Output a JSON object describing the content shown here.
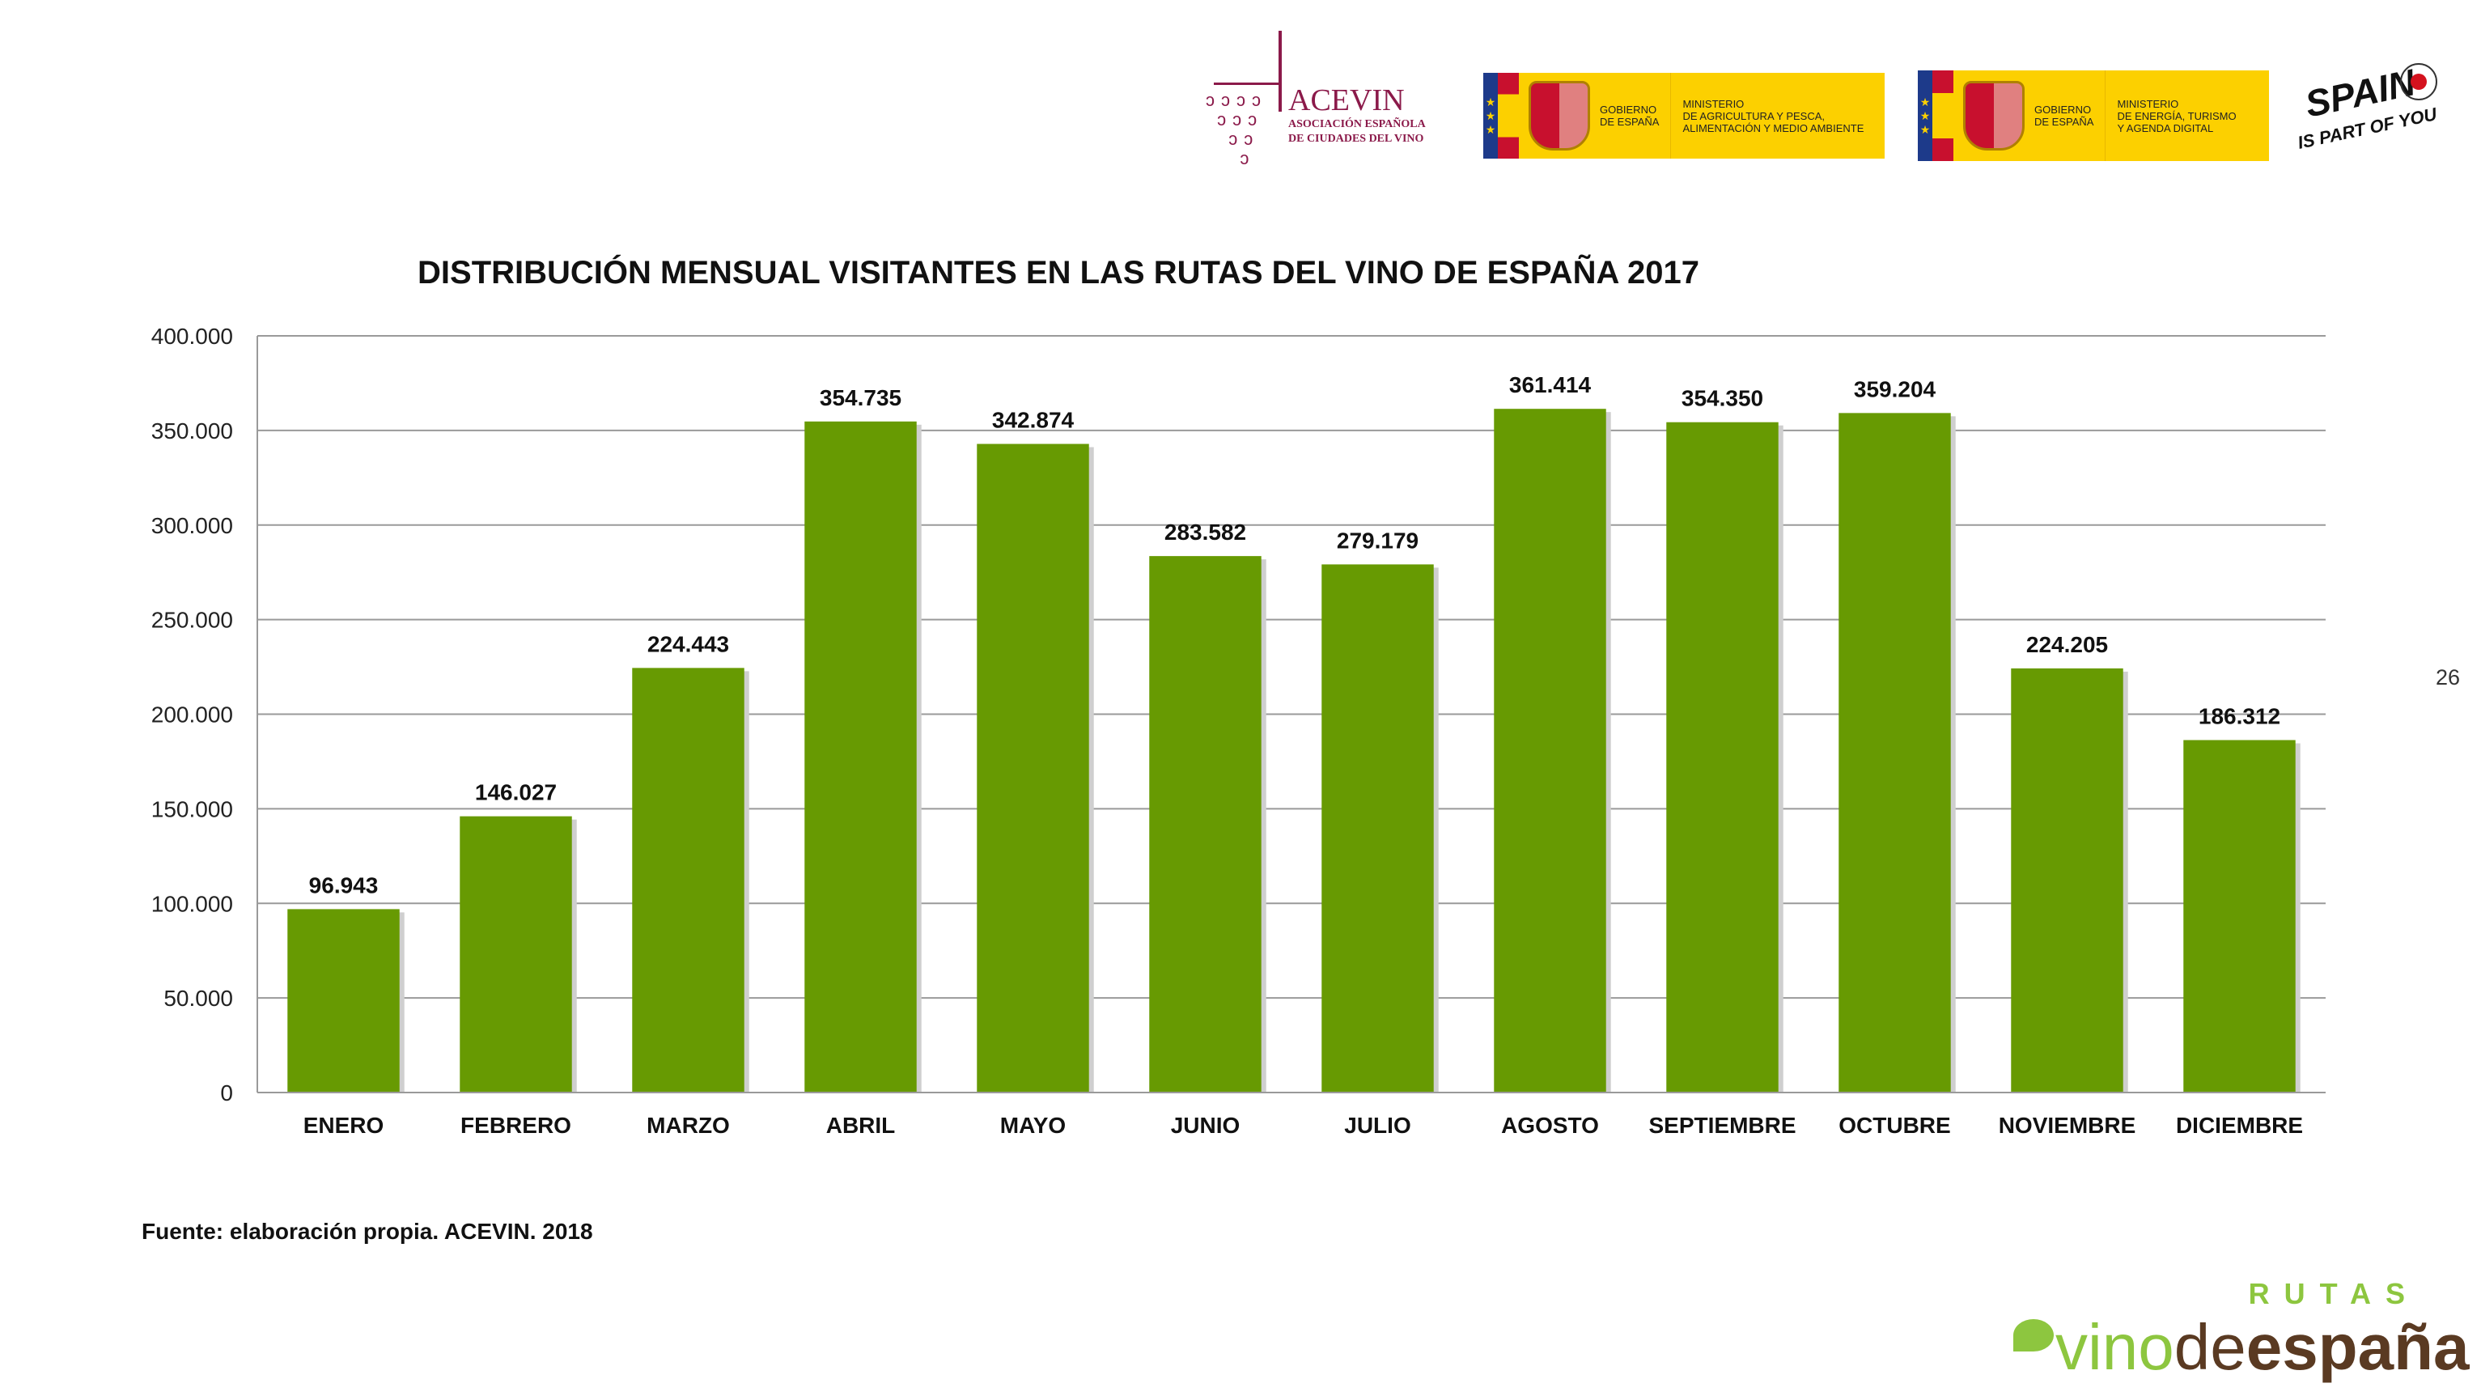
{
  "logos": {
    "acevin": {
      "name": "ACEVIN",
      "subtitle_line1": "ASOCIACIÓN ESPAÑOLA",
      "subtitle_line2": "DE CIUDADES DEL VINO"
    },
    "gov1": {
      "gov_line1": "GOBIERNO",
      "gov_line2": "DE ESPAÑA",
      "min_line1": "MINISTERIO",
      "min_line2": "DE AGRICULTURA Y PESCA,",
      "min_line3": "ALIMENTACIÓN Y MEDIO AMBIENTE"
    },
    "gov2": {
      "gov_line1": "GOBIERNO",
      "gov_line2": "DE ESPAÑA",
      "min_line1": "MINISTERIO",
      "min_line2": "DE ENERGÍA, TURISMO",
      "min_line3": "Y AGENDA DIGITAL"
    },
    "spain": {
      "line1": "SPAIN",
      "line2": "IS PART OF YOU"
    },
    "rutas": {
      "top": "RUTAS",
      "vino": "vino",
      "de": "de",
      "espana": "españa"
    }
  },
  "page_number": "26",
  "source": "Fuente: elaboración propia. ACEVIN. 2018",
  "colors": {
    "bar": "#679a02",
    "grid": "#9a9a9a",
    "acevin": "#8b1a4a",
    "rutas_green": "#8dc63f",
    "rutas_brown": "#5a3a22"
  },
  "chart_data": {
    "type": "bar",
    "title": "DISTRIBUCIÓN MENSUAL VISITANTES EN LAS RUTAS DEL VINO DE ESPAÑA  2017",
    "xlabel": "",
    "ylabel": "",
    "ylim": [
      0,
      400000
    ],
    "yticks": [
      0,
      50000,
      100000,
      150000,
      200000,
      250000,
      300000,
      350000,
      400000
    ],
    "ytick_labels": [
      "0",
      "50.000",
      "100.000",
      "150.000",
      "200.000",
      "250.000",
      "300.000",
      "350.000",
      "400.000"
    ],
    "grid": true,
    "categories": [
      "ENERO",
      "FEBRERO",
      "MARZO",
      "ABRIL",
      "MAYO",
      "JUNIO",
      "JULIO",
      "AGOSTO",
      "SEPTIEMBRE",
      "OCTUBRE",
      "NOVIEMBRE",
      "DICIEMBRE"
    ],
    "values": [
      96943,
      146027,
      224443,
      354735,
      342874,
      283582,
      279179,
      361414,
      354350,
      359204,
      224205,
      186312
    ],
    "value_labels": [
      "96.943",
      "146.027",
      "224.443",
      "354.735",
      "342.874",
      "283.582",
      "279.179",
      "361.414",
      "354.350",
      "359.204",
      "224.205",
      "186.312"
    ]
  }
}
